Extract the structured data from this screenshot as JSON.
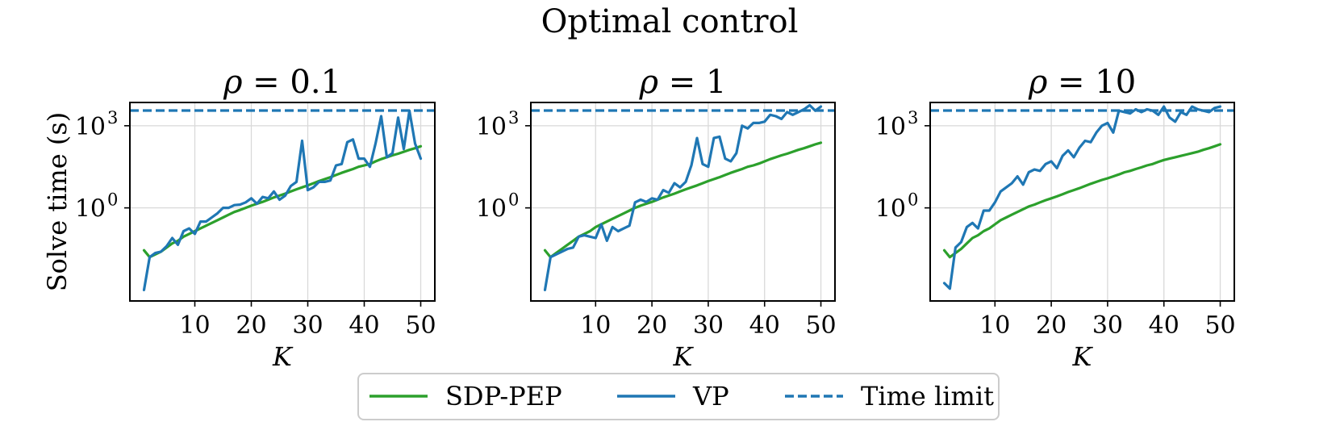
{
  "figure": {
    "title": "Optimal control",
    "ylabel": "Solve time (s)",
    "colors": {
      "sdp": "#2ca02c",
      "vp": "#1f77b4",
      "limit": "#1f77b4",
      "grid": "#d9d9d9",
      "axis": "#000000"
    },
    "legend": [
      "SDP-PEP",
      "VP",
      "Time limit"
    ]
  },
  "chart_data": [
    {
      "type": "line",
      "title": "ρ = 0.1",
      "title_var": "ρ",
      "title_rest": " = 0.1",
      "xlabel": "K",
      "ylabel": "Solve time (s)",
      "yscale": "log",
      "xlim": [
        -1.5,
        52.5
      ],
      "ylim_log10": [
        -3.4,
        3.85
      ],
      "xticks": [
        10,
        20,
        30,
        40,
        50
      ],
      "yticks": [
        {
          "exp10": 0,
          "label": "0"
        },
        {
          "exp10": 3,
          "label": "3"
        }
      ],
      "time_limit": 3600,
      "series": [
        {
          "name": "SDP-PEP",
          "x": [
            1,
            2,
            3,
            4,
            5,
            6,
            7,
            8,
            9,
            10,
            11,
            12,
            13,
            14,
            15,
            16,
            17,
            18,
            19,
            20,
            21,
            22,
            23,
            24,
            25,
            26,
            27,
            28,
            29,
            30,
            31,
            32,
            33,
            34,
            35,
            36,
            37,
            38,
            39,
            40,
            41,
            42,
            43,
            44,
            45,
            46,
            47,
            48,
            49,
            50
          ],
          "log10": [
            -1.55,
            -1.8,
            -1.7,
            -1.6,
            -1.45,
            -1.3,
            -1.2,
            -1.05,
            -0.95,
            -0.85,
            -0.75,
            -0.65,
            -0.55,
            -0.45,
            -0.35,
            -0.25,
            -0.15,
            -0.08,
            0.0,
            0.08,
            0.15,
            0.22,
            0.3,
            0.38,
            0.45,
            0.52,
            0.6,
            0.68,
            0.75,
            0.82,
            0.9,
            0.98,
            1.05,
            1.12,
            1.2,
            1.28,
            1.35,
            1.42,
            1.5,
            1.55,
            1.6,
            1.7,
            1.78,
            1.85,
            1.92,
            1.98,
            2.05,
            2.12,
            2.18,
            2.25
          ]
        },
        {
          "name": "VP",
          "x": [
            1,
            2,
            3,
            4,
            5,
            6,
            7,
            8,
            9,
            10,
            11,
            12,
            13,
            14,
            15,
            16,
            17,
            18,
            19,
            20,
            21,
            22,
            23,
            24,
            25,
            26,
            27,
            28,
            29,
            30,
            31,
            32,
            33,
            34,
            35,
            36,
            37,
            38,
            39,
            40,
            41,
            42,
            43,
            44,
            45,
            46,
            47,
            48,
            49,
            50
          ],
          "log10": [
            -3.0,
            -1.8,
            -1.65,
            -1.6,
            -1.4,
            -1.1,
            -1.35,
            -0.85,
            -0.75,
            -0.95,
            -0.5,
            -0.5,
            -0.35,
            -0.2,
            0.0,
            0.0,
            0.1,
            0.12,
            0.2,
            0.35,
            0.15,
            0.4,
            0.35,
            0.6,
            0.3,
            0.45,
            0.8,
            0.95,
            2.45,
            0.65,
            0.75,
            0.95,
            0.95,
            1.0,
            1.55,
            1.6,
            2.4,
            2.5,
            1.8,
            1.8,
            1.5,
            2.35,
            3.35,
            1.85,
            2.0,
            3.3,
            2.15,
            3.55,
            2.35,
            1.8
          ]
        }
      ]
    },
    {
      "type": "line",
      "title": "ρ = 1",
      "title_var": "ρ",
      "title_rest": " = 1",
      "xlabel": "K",
      "ylabel": "",
      "yscale": "log",
      "xlim": [
        -1.5,
        52.5
      ],
      "ylim_log10": [
        -3.4,
        3.85
      ],
      "xticks": [
        10,
        20,
        30,
        40,
        50
      ],
      "yticks": [
        {
          "exp10": 0,
          "label": "0"
        },
        {
          "exp10": 3,
          "label": "3"
        }
      ],
      "time_limit": 3600,
      "series": [
        {
          "name": "SDP-PEP",
          "x": [
            1,
            2,
            3,
            4,
            5,
            6,
            7,
            8,
            9,
            10,
            11,
            12,
            13,
            14,
            15,
            16,
            17,
            18,
            19,
            20,
            21,
            22,
            23,
            24,
            25,
            26,
            27,
            28,
            29,
            30,
            31,
            32,
            33,
            34,
            35,
            36,
            37,
            38,
            39,
            40,
            41,
            42,
            43,
            44,
            45,
            46,
            47,
            48,
            49,
            50
          ],
          "log10": [
            -1.55,
            -1.8,
            -1.65,
            -1.5,
            -1.35,
            -1.2,
            -1.05,
            -0.95,
            -0.85,
            -0.7,
            -0.6,
            -0.5,
            -0.4,
            -0.3,
            -0.2,
            -0.1,
            0.0,
            0.08,
            0.15,
            0.22,
            0.3,
            0.38,
            0.45,
            0.52,
            0.6,
            0.68,
            0.75,
            0.82,
            0.9,
            0.98,
            1.05,
            1.12,
            1.2,
            1.28,
            1.35,
            1.42,
            1.5,
            1.55,
            1.62,
            1.7,
            1.78,
            1.85,
            1.92,
            1.98,
            2.05,
            2.12,
            2.18,
            2.25,
            2.32,
            2.38
          ]
        },
        {
          "name": "VP",
          "x": [
            1,
            2,
            3,
            4,
            5,
            6,
            7,
            8,
            9,
            10,
            11,
            12,
            13,
            14,
            15,
            16,
            17,
            18,
            19,
            20,
            21,
            22,
            23,
            24,
            25,
            26,
            27,
            28,
            29,
            30,
            31,
            32,
            33,
            34,
            35,
            36,
            37,
            38,
            39,
            40,
            41,
            42,
            43,
            44,
            45,
            46,
            47,
            48,
            49,
            50
          ],
          "log10": [
            -3.0,
            -1.8,
            -1.7,
            -1.6,
            -1.5,
            -1.45,
            -1.05,
            -1.0,
            -1.05,
            -1.1,
            -0.6,
            -1.2,
            -0.7,
            -0.85,
            -0.75,
            -0.65,
            0.2,
            0.3,
            0.22,
            0.35,
            0.3,
            0.65,
            0.55,
            0.9,
            0.75,
            0.95,
            1.55,
            2.55,
            1.6,
            1.5,
            2.55,
            2.6,
            1.8,
            1.7,
            2.0,
            3.0,
            2.9,
            3.1,
            3.1,
            3.15,
            3.4,
            3.35,
            3.25,
            3.5,
            3.4,
            3.5,
            3.6,
            3.75,
            3.55,
            3.7
          ]
        }
      ]
    },
    {
      "type": "line",
      "title": "ρ = 10",
      "title_var": "ρ",
      "title_rest": " = 10",
      "xlabel": "K",
      "ylabel": "",
      "yscale": "log",
      "xlim": [
        -1.5,
        52.5
      ],
      "ylim_log10": [
        -3.4,
        3.85
      ],
      "xticks": [
        10,
        20,
        30,
        40,
        50
      ],
      "yticks": [
        {
          "exp10": 0,
          "label": "0"
        },
        {
          "exp10": 3,
          "label": "3"
        }
      ],
      "time_limit": 3600,
      "series": [
        {
          "name": "SDP-PEP",
          "x": [
            1,
            2,
            3,
            4,
            5,
            6,
            7,
            8,
            9,
            10,
            11,
            12,
            13,
            14,
            15,
            16,
            17,
            18,
            19,
            20,
            21,
            22,
            23,
            24,
            25,
            26,
            27,
            28,
            29,
            30,
            31,
            32,
            33,
            34,
            35,
            36,
            37,
            38,
            39,
            40,
            41,
            42,
            43,
            44,
            45,
            46,
            47,
            48,
            49,
            50
          ],
          "log10": [
            -1.55,
            -1.8,
            -1.65,
            -1.5,
            -1.3,
            -1.1,
            -1.0,
            -0.85,
            -0.75,
            -0.6,
            -0.45,
            -0.35,
            -0.25,
            -0.15,
            -0.05,
            0.05,
            0.12,
            0.2,
            0.28,
            0.35,
            0.42,
            0.5,
            0.58,
            0.65,
            0.72,
            0.8,
            0.88,
            0.95,
            1.02,
            1.08,
            1.15,
            1.22,
            1.3,
            1.35,
            1.42,
            1.48,
            1.55,
            1.6,
            1.68,
            1.75,
            1.8,
            1.85,
            1.9,
            1.95,
            2.0,
            2.05,
            2.12,
            2.18,
            2.25,
            2.32
          ]
        },
        {
          "name": "VP",
          "x": [
            1,
            2,
            3,
            4,
            5,
            6,
            7,
            8,
            9,
            10,
            11,
            12,
            13,
            14,
            15,
            16,
            17,
            18,
            19,
            20,
            21,
            22,
            23,
            24,
            25,
            26,
            27,
            28,
            29,
            30,
            31,
            32,
            33,
            34,
            35,
            36,
            37,
            38,
            39,
            40,
            41,
            42,
            43,
            44,
            45,
            46,
            47,
            48,
            49,
            50
          ],
          "log10": [
            -2.75,
            -2.95,
            -1.45,
            -1.25,
            -0.7,
            -0.55,
            -0.75,
            -0.1,
            -0.1,
            0.2,
            0.6,
            0.75,
            0.9,
            1.15,
            0.85,
            1.3,
            1.4,
            1.35,
            1.6,
            1.7,
            1.45,
            1.9,
            2.1,
            1.85,
            2.2,
            2.45,
            2.4,
            2.75,
            3.0,
            3.1,
            2.75,
            3.55,
            3.5,
            3.45,
            3.6,
            3.5,
            3.6,
            3.55,
            3.4,
            3.7,
            3.3,
            3.15,
            3.5,
            3.4,
            3.7,
            3.6,
            3.55,
            3.5,
            3.65,
            3.7
          ]
        }
      ]
    }
  ]
}
